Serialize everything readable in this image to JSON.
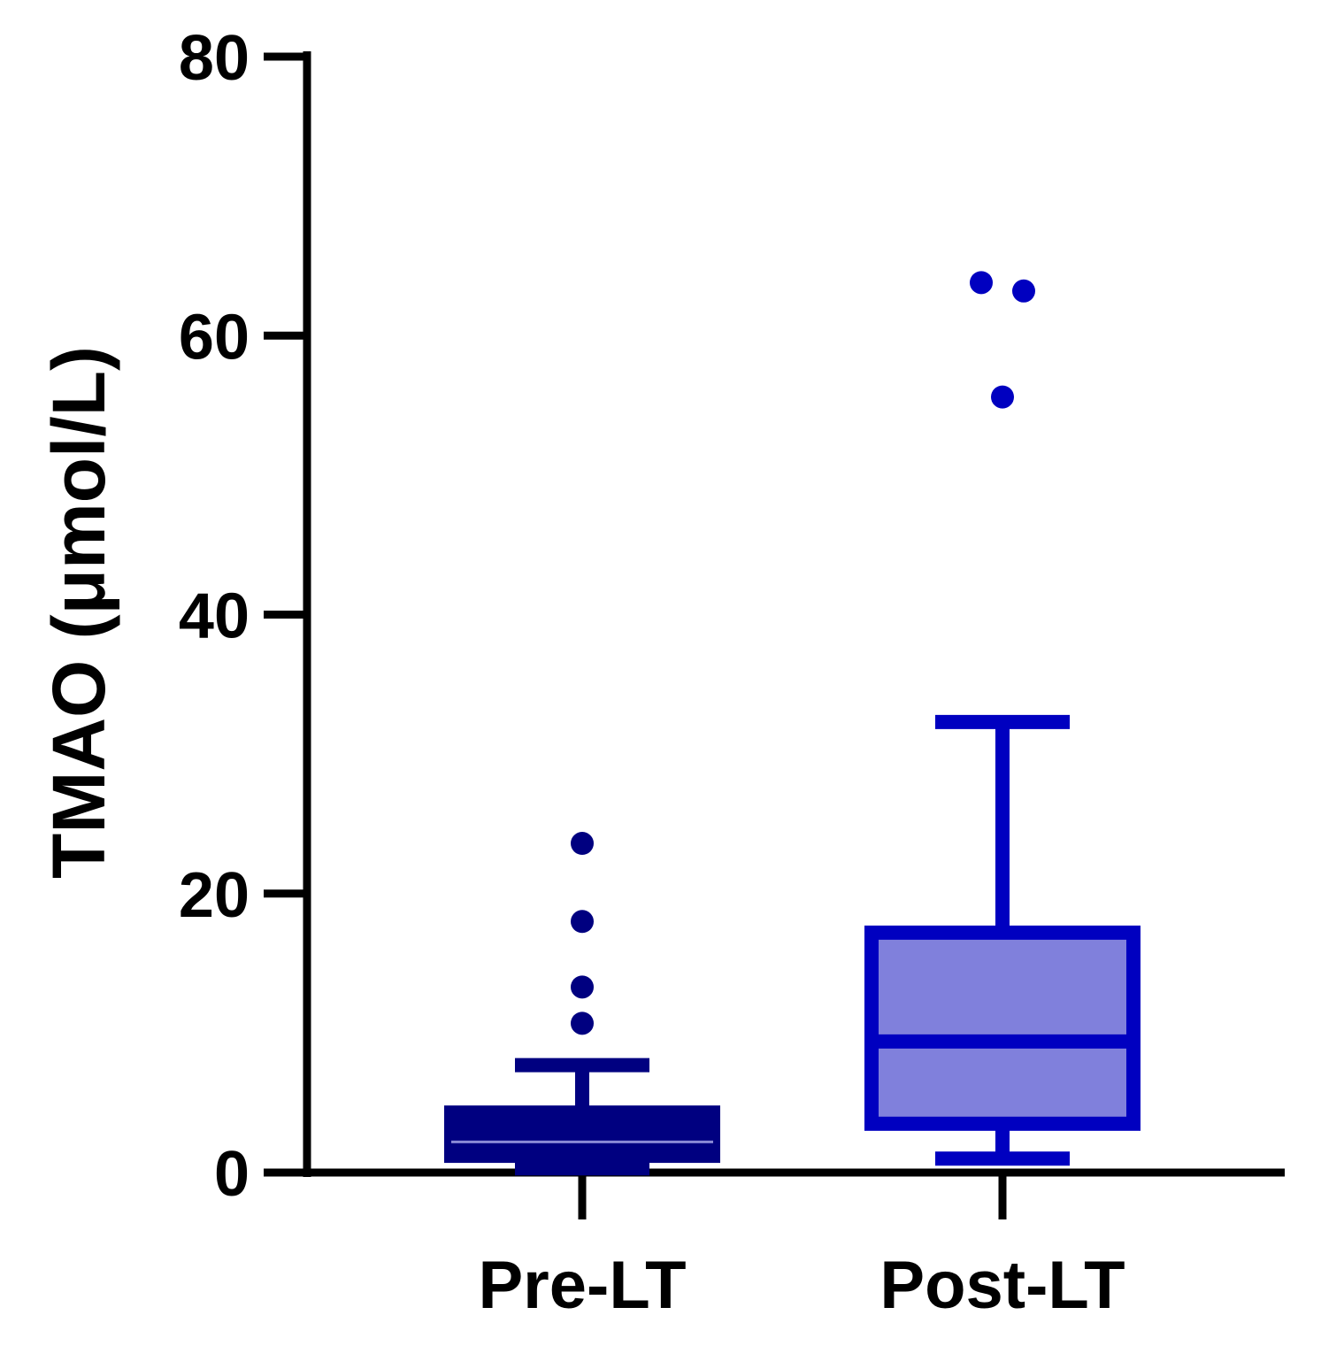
{
  "chart_data": {
    "type": "box",
    "ylabel": "TMAO (μmol/L)",
    "ylim": [
      0,
      80
    ],
    "yticks": [
      0,
      20,
      40,
      60,
      80
    ],
    "categories": [
      "Pre-LT",
      "Post-LT"
    ],
    "series": [
      {
        "category": "Pre-LT",
        "whisker_low": 0.3,
        "q1": 1.2,
        "median": 2.2,
        "q3": 4.3,
        "whisker_high": 7.7,
        "outliers": [
          10.7,
          13.3,
          18.0,
          23.6
        ],
        "fill": "#000080",
        "stroke": "#000080",
        "median_color": "#8a8ad6"
      },
      {
        "category": "Post-LT",
        "whisker_low": 1.0,
        "q1": 3.5,
        "median": 9.4,
        "q3": 17.2,
        "whisker_high": 32.3,
        "outliers": [
          55.6,
          63.2,
          63.8
        ],
        "fill": "#8080dc",
        "stroke": "#0000c0",
        "median_color": "#0000c0"
      }
    ],
    "grid": false,
    "legend": "none"
  }
}
